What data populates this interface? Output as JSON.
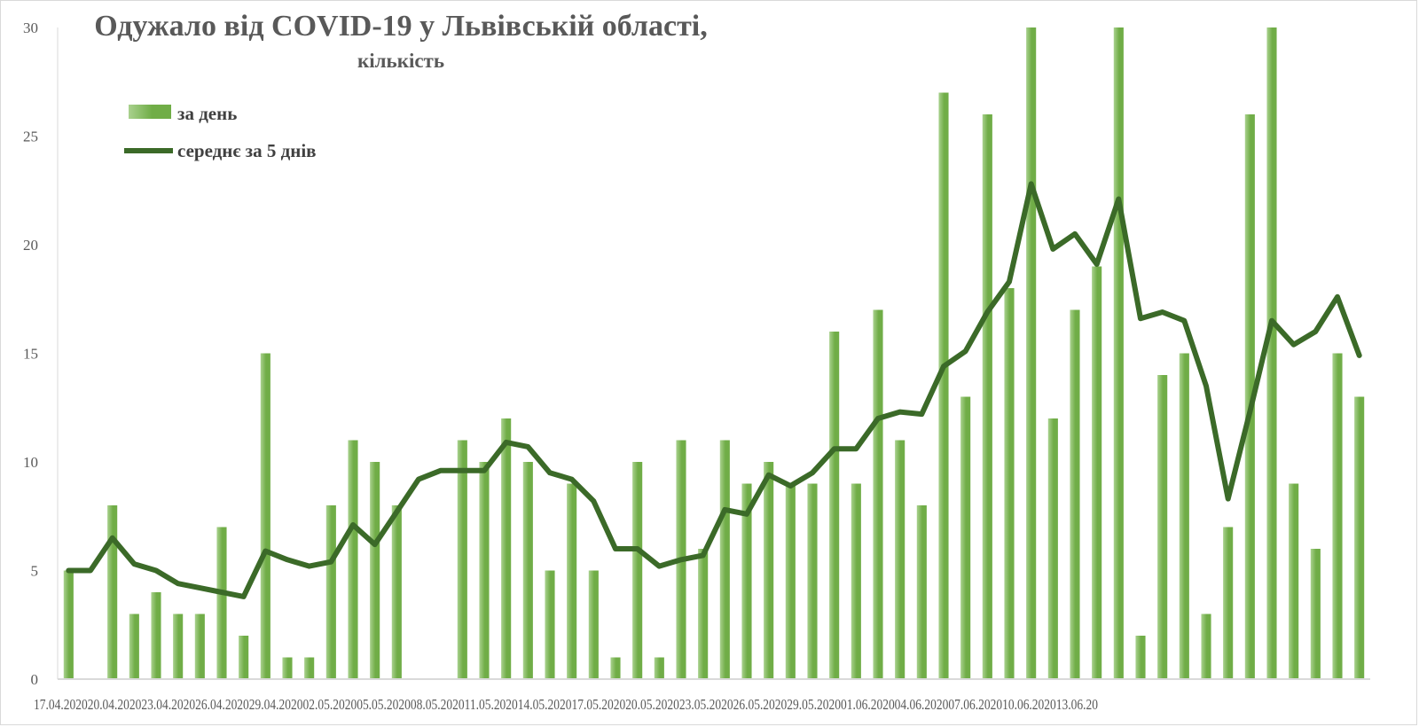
{
  "chart_data": {
    "type": "bar",
    "title": "Одужало від COVID-19 у Львівській області,",
    "subtitle": "кількість",
    "ylim": [
      0,
      30
    ],
    "yticks": [
      0,
      5,
      10,
      15,
      20,
      25,
      30
    ],
    "grid": false,
    "legend_position": "top-left",
    "x_tick_labels": [
      "17.04.",
      "20.04.",
      "23.04.",
      "26.04.",
      "29.04.",
      "02.05.",
      "05.05.",
      "08.05.",
      "11.05.",
      "14.05.",
      "17.05.",
      "20.05.",
      "23.05.",
      "26.05.",
      "29.05.",
      "01.06.",
      "04.06.",
      "07.06.",
      "10.06.",
      "13.06."
    ],
    "x_tick_suffix": "2020",
    "x_tick_last_label": "20",
    "colors": {
      "bar": "#70ad47",
      "bar_light": "#a9d18e",
      "line": "#3b6a28",
      "axis": "#d9d9d9",
      "text": "#595959"
    },
    "series": [
      {
        "name": "за день",
        "type": "bar",
        "values": [
          5,
          0,
          8,
          3,
          4,
          3,
          3,
          7,
          2,
          15,
          1,
          1,
          8,
          11,
          10,
          8,
          0,
          0,
          11,
          10,
          12,
          10,
          5,
          9,
          5,
          1,
          10,
          1,
          11,
          6,
          11,
          9,
          10,
          9,
          9,
          16,
          9,
          17,
          11,
          8,
          27,
          13,
          26,
          18,
          30,
          12,
          17,
          19,
          30,
          2,
          14,
          15,
          3,
          7,
          26,
          30,
          9,
          6,
          15,
          13
        ]
      },
      {
        "name": "середнє за 5 днів",
        "type": "line",
        "values": [
          5,
          5,
          6.5,
          5.3,
          5.0,
          4.4,
          4.2,
          4.0,
          3.8,
          5.9,
          5.5,
          5.2,
          5.4,
          7.1,
          6.2,
          7.7,
          9.2,
          9.6,
          9.6,
          9.6,
          10.9,
          10.7,
          9.5,
          9.2,
          8.2,
          6.0,
          6.0,
          5.2,
          5.5,
          5.7,
          7.8,
          7.6,
          9.4,
          8.9,
          9.5,
          10.6,
          10.6,
          12.0,
          12.3,
          12.2,
          14.4,
          15.1,
          16.9,
          18.3,
          22.8,
          19.8,
          20.5,
          19.1,
          22.1,
          16.6,
          16.9,
          16.5,
          13.5,
          8.3,
          12.3,
          16.5,
          15.4,
          16.0,
          17.6,
          14.9
        ]
      }
    ]
  }
}
